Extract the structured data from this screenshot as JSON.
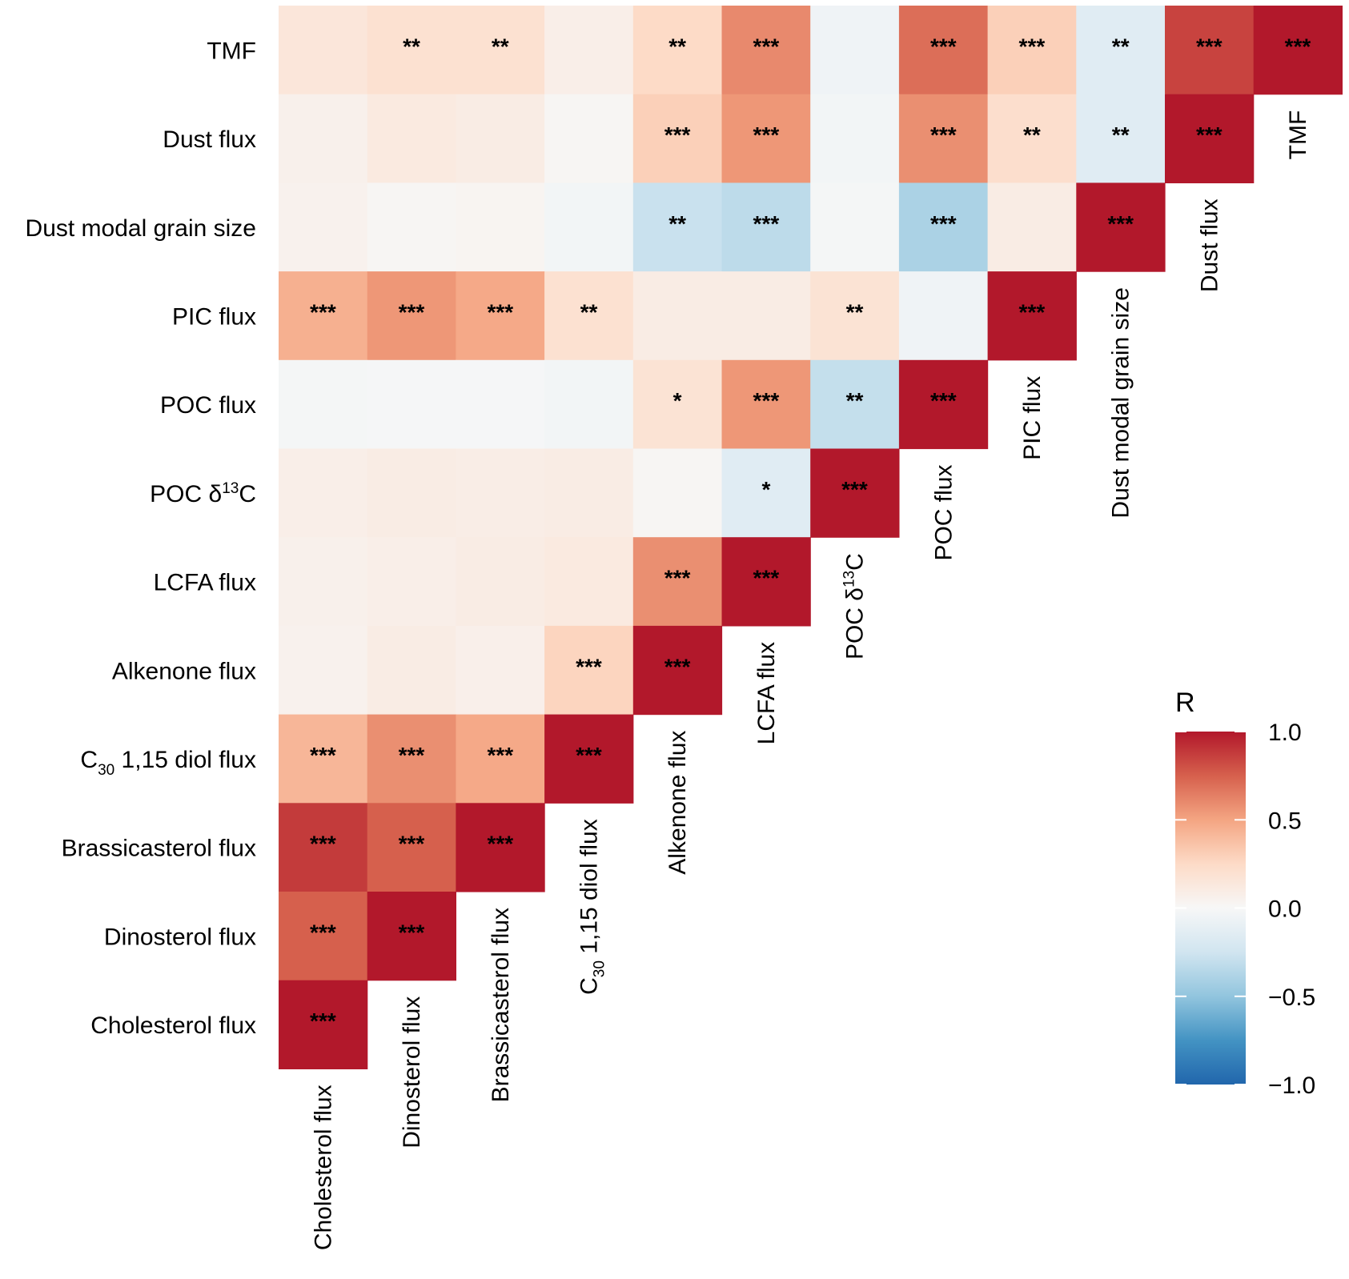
{
  "chart_data": {
    "type": "heatmap",
    "title": "",
    "xlabel": "",
    "ylabel": "",
    "variables": [
      {
        "name": "Cholesterol flux",
        "sub": null,
        "sup": null
      },
      {
        "name": "Dinosterol flux",
        "sub": null,
        "sup": null
      },
      {
        "name": "Brassicasterol flux",
        "sub": null,
        "sup": null
      },
      {
        "name": "C30 1,15 diol flux",
        "prefix": "C",
        "sub": "30",
        "suffix": " 1,15 diol flux"
      },
      {
        "name": "Alkenone flux",
        "sub": null,
        "sup": null
      },
      {
        "name": "LCFA flux",
        "sub": null,
        "sup": null
      },
      {
        "name": "POC δ13C",
        "prefix": "POC δ",
        "sup": "13",
        "suffix": "C"
      },
      {
        "name": "POC flux",
        "sub": null,
        "sup": null
      },
      {
        "name": "PIC flux",
        "sub": null,
        "sup": null
      },
      {
        "name": "Dust modal grain size",
        "sub": null,
        "sup": null
      },
      {
        "name": "Dust flux",
        "sub": null,
        "sup": null
      },
      {
        "name": "TMF",
        "sub": null,
        "sup": null
      }
    ],
    "row_order_top_to_bottom": [
      "TMF",
      "Dust flux",
      "Dust modal grain size",
      "PIC flux",
      "POC flux",
      "POC δ13C",
      "LCFA flux",
      "Alkenone flux",
      "C30 1,15 diol flux",
      "Brassicasterol flux",
      "Dinosterol flux",
      "Cholesterol flux"
    ],
    "matrix_rows": [
      {
        "row": "TMF",
        "r": [
          0.15,
          0.2,
          0.2,
          0.08,
          0.25,
          0.6,
          -0.05,
          0.7,
          0.3,
          -0.15,
          0.85,
          1.0
        ],
        "sig": [
          "",
          "**",
          "**",
          "",
          "**",
          "***",
          "",
          "***",
          "***",
          "**",
          "***",
          "***"
        ]
      },
      {
        "row": "Dust flux",
        "r": [
          0.06,
          0.12,
          0.1,
          0.02,
          0.3,
          0.55,
          -0.03,
          0.58,
          0.22,
          -0.15,
          1.0
        ],
        "sig": [
          "",
          "",
          "",
          "",
          "***",
          "***",
          "",
          "***",
          "**",
          "**",
          "***"
        ]
      },
      {
        "row": "Dust modal grain size",
        "r": [
          0.05,
          0.02,
          0.03,
          -0.03,
          -0.28,
          -0.33,
          -0.02,
          -0.4,
          0.1,
          1.0
        ],
        "sig": [
          "",
          "",
          "",
          "",
          "**",
          "***",
          "",
          "***",
          "",
          "***"
        ]
      },
      {
        "row": "PIC flux",
        "r": [
          0.45,
          0.55,
          0.48,
          0.2,
          0.1,
          0.1,
          0.18,
          -0.05,
          1.0
        ],
        "sig": [
          "***",
          "***",
          "***",
          "**",
          "",
          "",
          "**",
          "",
          "***"
        ]
      },
      {
        "row": "POC flux",
        "r": [
          -0.02,
          -0.01,
          -0.01,
          -0.03,
          0.18,
          0.55,
          -0.3,
          1.0
        ],
        "sig": [
          "",
          "",
          "",
          "",
          "*",
          "***",
          "**",
          "***"
        ]
      },
      {
        "row": "POC δ13C",
        "r": [
          0.08,
          0.1,
          0.09,
          0.1,
          0.02,
          -0.15,
          1.0
        ],
        "sig": [
          "",
          "",
          "",
          "",
          "",
          "*",
          "***"
        ]
      },
      {
        "row": "LCFA flux",
        "r": [
          0.06,
          0.08,
          0.1,
          0.12,
          0.58,
          1.0
        ],
        "sig": [
          "",
          "",
          "",
          "",
          "***",
          "***"
        ]
      },
      {
        "row": "Alkenone flux",
        "r": [
          0.05,
          0.1,
          0.07,
          0.28,
          1.0
        ],
        "sig": [
          "",
          "",
          "",
          "***",
          "***"
        ]
      },
      {
        "row": "C30 1,15 diol flux",
        "r": [
          0.42,
          0.58,
          0.48,
          1.0
        ],
        "sig": [
          "***",
          "***",
          "***",
          "***"
        ]
      },
      {
        "row": "Brassicasterol flux",
        "r": [
          0.88,
          0.75,
          1.0
        ],
        "sig": [
          "***",
          "***",
          "***"
        ]
      },
      {
        "row": "Dinosterol flux",
        "r": [
          0.75,
          1.0
        ],
        "sig": [
          "***",
          "***"
        ]
      },
      {
        "row": "Cholesterol flux",
        "r": [
          1.0
        ],
        "sig": [
          "***"
        ]
      }
    ],
    "legend": {
      "title": "R",
      "placement": "right",
      "range": [
        -1.0,
        1.0
      ],
      "ticks": [
        {
          "value": 1.0,
          "label": "1.0"
        },
        {
          "value": 0.5,
          "label": "0.5"
        },
        {
          "value": 0.0,
          "label": "0.0"
        },
        {
          "value": -0.5,
          "label": "−0.5"
        },
        {
          "value": -1.0,
          "label": "−1.0"
        }
      ]
    },
    "colors": {
      "neg": "#2166ac",
      "neg_mid": "#4393c3",
      "neg_light": "#92c5de",
      "neg_pale": "#d1e5f0",
      "zero": "#f7f7f7",
      "pos_pale": "#fddbc7",
      "pos_light": "#f4a582",
      "pos_mid": "#d6604d",
      "pos": "#b2182b"
    }
  }
}
